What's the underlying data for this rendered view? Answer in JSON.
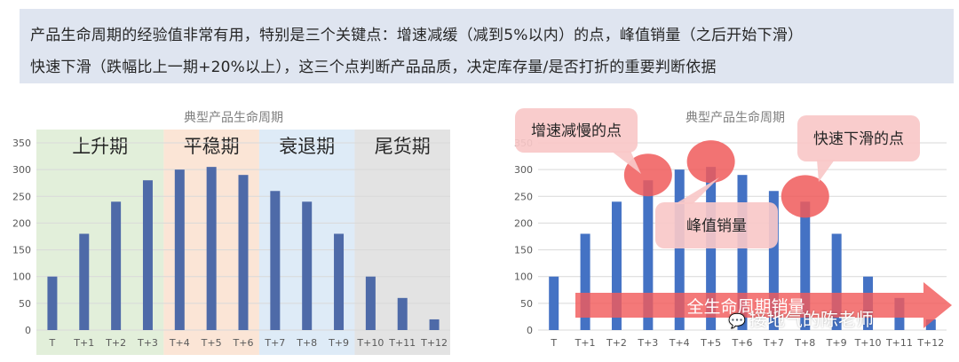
{
  "banner": {
    "line1": "产品生命周期的经验值非常有用，特别是三个关键点：增速减缓（减到5%以内）的点，峰值销量（之后开始下滑）",
    "line2": "快速下滑（跌幅比上一期+20%以上），这三个点判断产品品质，决定库存量/是否打折的重要判断依据"
  },
  "chart_data": [
    {
      "type": "bar",
      "title": "典型产品生命周期",
      "categories": [
        "T",
        "T+1",
        "T+2",
        "T+3",
        "T+4",
        "T+5",
        "T+6",
        "T+7",
        "T+8",
        "T+9",
        "T+10",
        "T+11",
        "T+12"
      ],
      "values": [
        100,
        180,
        240,
        280,
        300,
        305,
        290,
        260,
        240,
        180,
        100,
        60,
        20
      ],
      "ylim": [
        0,
        350
      ],
      "yticks": [
        0,
        50,
        100,
        150,
        200,
        250,
        300,
        350
      ],
      "grid": true,
      "bar_color": "#4e6aa8",
      "phases": [
        {
          "label": "上升期",
          "from": 0,
          "to": 3,
          "color": "#e2efda"
        },
        {
          "label": "平稳期",
          "from": 4,
          "to": 6,
          "color": "#fbe5d6"
        },
        {
          "label": "衰退期",
          "from": 7,
          "to": 9,
          "color": "#deebf7"
        },
        {
          "label": "尾货期",
          "from": 10,
          "to": 12,
          "color": "#e3e3e3"
        }
      ]
    },
    {
      "type": "bar",
      "title": "典型产品生命周期",
      "categories": [
        "T",
        "T+1",
        "T+2",
        "T+3",
        "T+4",
        "T+5",
        "T+6",
        "T+7",
        "T+8",
        "T+9",
        "T+10",
        "T+11",
        "T+12"
      ],
      "values": [
        100,
        180,
        240,
        280,
        300,
        305,
        290,
        260,
        240,
        180,
        100,
        60,
        20
      ],
      "ylim": [
        0,
        350
      ],
      "yticks": [
        0,
        50,
        100,
        150,
        200,
        250,
        300,
        350
      ],
      "grid": true,
      "bar_color": "#4472c4",
      "arrow_label": "全生命周期销量",
      "callouts": [
        "增速减慢的点",
        "峰值销量",
        "快速下滑的点"
      ]
    }
  ],
  "watermark": "接地气的陈老师",
  "colors": {
    "highlight_circle": "#f05a5a",
    "callout_fill": "#f8c8c8",
    "arrow": "#f25c5c"
  }
}
